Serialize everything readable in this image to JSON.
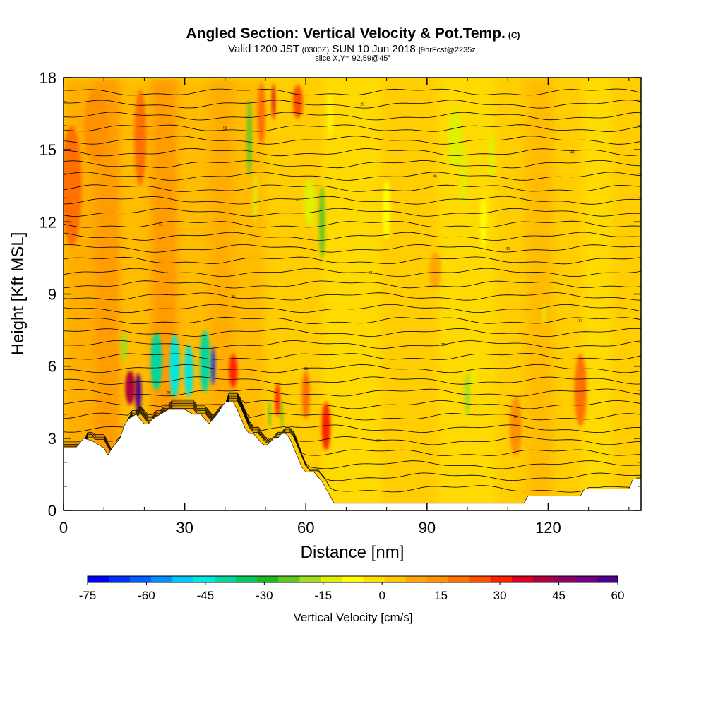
{
  "header": {
    "title": "Angled Section: Vertical Velocity & Pot.Temp.",
    "title_units": "(C)",
    "subtitle_prefix": "Valid 1200 JST",
    "subtitle_zulu": "(0300Z)",
    "subtitle_date": "SUN 10 Jun 2018",
    "subtitle_fcst": "[9hrFcst@2235z]",
    "slice": "slice X,Y= 92,59@45°"
  },
  "chart_data": {
    "type": "heatmap",
    "xlabel": "Distance [nm]",
    "ylabel": "Height [Kft MSL]",
    "xlim": [
      0,
      143
    ],
    "ylim": [
      0,
      18
    ],
    "xticks": [
      0,
      30,
      60,
      90,
      120
    ],
    "yticks": [
      0,
      3,
      6,
      9,
      12,
      15,
      18
    ],
    "colorbar": {
      "label": "Vertical Velocity [cm/s]",
      "ticks": [
        -75,
        -60,
        -45,
        -30,
        -15,
        0,
        15,
        30,
        45,
        60
      ],
      "min": -75,
      "max": 60,
      "colors": [
        "#0000ff",
        "#0030ff",
        "#0060ff",
        "#0090ff",
        "#00c8ff",
        "#00e8e0",
        "#00d8a0",
        "#00c860",
        "#20b820",
        "#60c820",
        "#a0e020",
        "#e0f000",
        "#ffff00",
        "#ffe000",
        "#ffc800",
        "#ffa800",
        "#ff9000",
        "#ff7000",
        "#ff5000",
        "#ff2000",
        "#e00020",
        "#b00040",
        "#900060",
        "#700080",
        "#500090"
      ]
    },
    "terrain_top_kft": [
      [
        0,
        2.6
      ],
      [
        3,
        2.6
      ],
      [
        5,
        3.0
      ],
      [
        7,
        2.9
      ],
      [
        10,
        2.6
      ],
      [
        11,
        2.3
      ],
      [
        12,
        2.6
      ],
      [
        13,
        2.8
      ],
      [
        14,
        3.0
      ],
      [
        15,
        3.5
      ],
      [
        16,
        3.8
      ],
      [
        18,
        4.0
      ],
      [
        19,
        3.8
      ],
      [
        20,
        3.6
      ],
      [
        21,
        3.6
      ],
      [
        22,
        3.8
      ],
      [
        24,
        4.0
      ],
      [
        26,
        4.2
      ],
      [
        28,
        4.2
      ],
      [
        30,
        4.2
      ],
      [
        32,
        4.0
      ],
      [
        34,
        4.0
      ],
      [
        35,
        3.8
      ],
      [
        36,
        3.6
      ],
      [
        37,
        3.8
      ],
      [
        38,
        4.0
      ],
      [
        40,
        4.5
      ],
      [
        42,
        4.5
      ],
      [
        43,
        4.2
      ],
      [
        44,
        3.8
      ],
      [
        45,
        3.4
      ],
      [
        46,
        3.2
      ],
      [
        47,
        3.2
      ],
      [
        48,
        3.0
      ],
      [
        49,
        2.8
      ],
      [
        50,
        2.7
      ],
      [
        51,
        2.8
      ],
      [
        52,
        3.0
      ],
      [
        53,
        3.0
      ],
      [
        54,
        3.2
      ],
      [
        55,
        3.2
      ],
      [
        56,
        3.0
      ],
      [
        57,
        2.6
      ],
      [
        58,
        2.2
      ],
      [
        59,
        1.8
      ],
      [
        60,
        1.6
      ],
      [
        62,
        1.6
      ],
      [
        63,
        1.4
      ],
      [
        64,
        1.2
      ],
      [
        65,
        0.9
      ],
      [
        66,
        0.6
      ],
      [
        67,
        0.3
      ],
      [
        75,
        0.3
      ],
      [
        90,
        0.3
      ],
      [
        100,
        0.3
      ],
      [
        114,
        0.3
      ],
      [
        115,
        0.6
      ],
      [
        128,
        0.6
      ],
      [
        129,
        0.9
      ],
      [
        140,
        0.9
      ],
      [
        141,
        1.3
      ],
      [
        143,
        1.3
      ]
    ],
    "velocity_features": [
      {
        "x": 18.5,
        "y": 4.9,
        "w": 1.6,
        "h": 1.6,
        "value": 55
      },
      {
        "x": 16.5,
        "y": 5.1,
        "w": 2.5,
        "h": 1.4,
        "value": 40
      },
      {
        "x": 2,
        "y": 13.5,
        "w": 5,
        "h": 5,
        "value": 20
      },
      {
        "x": 8,
        "y": 16,
        "w": 6,
        "h": 3,
        "value": 15
      },
      {
        "x": 19,
        "y": 15.5,
        "w": 3,
        "h": 4,
        "value": 20
      },
      {
        "x": 15,
        "y": 6.8,
        "w": 1.5,
        "h": 1.2,
        "value": -20
      },
      {
        "x": 23,
        "y": 6.2,
        "w": 2.8,
        "h": 2.4,
        "value": -40
      },
      {
        "x": 27.5,
        "y": 6.0,
        "w": 2.5,
        "h": 2.6,
        "value": -45
      },
      {
        "x": 31,
        "y": 5.8,
        "w": 2.2,
        "h": 2.2,
        "value": -45
      },
      {
        "x": 37,
        "y": 6.0,
        "w": 1.0,
        "h": 1.6,
        "value": -65
      },
      {
        "x": 35,
        "y": 6.2,
        "w": 2.5,
        "h": 2.6,
        "value": -40
      },
      {
        "x": 42,
        "y": 5.8,
        "w": 2.0,
        "h": 1.4,
        "value": 30
      },
      {
        "x": 46,
        "y": 15.5,
        "w": 1.2,
        "h": 3.2,
        "value": -25
      },
      {
        "x": 47.5,
        "y": 13.0,
        "w": 1.0,
        "h": 2.0,
        "value": -15
      },
      {
        "x": 52,
        "y": 17.0,
        "w": 0.8,
        "h": 1.5,
        "value": 35
      },
      {
        "x": 58,
        "y": 17.0,
        "w": 2.5,
        "h": 1.4,
        "value": 25
      },
      {
        "x": 49,
        "y": 16.5,
        "w": 2.0,
        "h": 2.5,
        "value": 20
      },
      {
        "x": 64,
        "y": 12.0,
        "w": 1.4,
        "h": 3.0,
        "value": -25
      },
      {
        "x": 61,
        "y": 12.8,
        "w": 3.0,
        "h": 2.0,
        "value": -15
      },
      {
        "x": 51,
        "y": 4.0,
        "w": 0.6,
        "h": 1.2,
        "value": -25
      },
      {
        "x": 54,
        "y": 4.0,
        "w": 0.6,
        "h": 1.2,
        "value": -25
      },
      {
        "x": 53,
        "y": 4.6,
        "w": 1.2,
        "h": 1.4,
        "value": 30
      },
      {
        "x": 65,
        "y": 3.5,
        "w": 2.2,
        "h": 2.0,
        "value": 28
      },
      {
        "x": 60,
        "y": 4.8,
        "w": 2.0,
        "h": 2.0,
        "value": 20
      },
      {
        "x": 80,
        "y": 12.5,
        "w": 2.0,
        "h": 2.5,
        "value": -10
      },
      {
        "x": 97,
        "y": 15.5,
        "w": 3.5,
        "h": 2.5,
        "value": -15
      },
      {
        "x": 99,
        "y": 14.0,
        "w": 1.5,
        "h": 2.5,
        "value": -12
      },
      {
        "x": 106,
        "y": 14.8,
        "w": 1.5,
        "h": 2.0,
        "value": -15
      },
      {
        "x": 104,
        "y": 12.0,
        "w": 1.5,
        "h": 2.2,
        "value": -10
      },
      {
        "x": 100,
        "y": 4.8,
        "w": 1.3,
        "h": 1.8,
        "value": -20
      },
      {
        "x": 101.5,
        "y": 5.6,
        "w": 0.8,
        "h": 1.2,
        "value": -15
      },
      {
        "x": 119,
        "y": 8.2,
        "w": 0.8,
        "h": 1.0,
        "value": -15
      },
      {
        "x": 128,
        "y": 5.0,
        "w": 3.0,
        "h": 3.0,
        "value": 18
      },
      {
        "x": 112,
        "y": 3.5,
        "w": 3.0,
        "h": 2.5,
        "value": 15
      },
      {
        "x": 92,
        "y": 10.0,
        "w": 3.0,
        "h": 1.5,
        "value": 10
      },
      {
        "x": 66,
        "y": 16.5,
        "w": 1.0,
        "h": 2.0,
        "value": -8
      }
    ],
    "theta_contours": {
      "levels_note": "isentropes",
      "labels": [
        "20",
        "22",
        "24",
        "26",
        "28",
        "30",
        "32",
        "34",
        "36",
        "38",
        "40",
        "42",
        "44",
        "46",
        "48",
        "50"
      ]
    }
  }
}
